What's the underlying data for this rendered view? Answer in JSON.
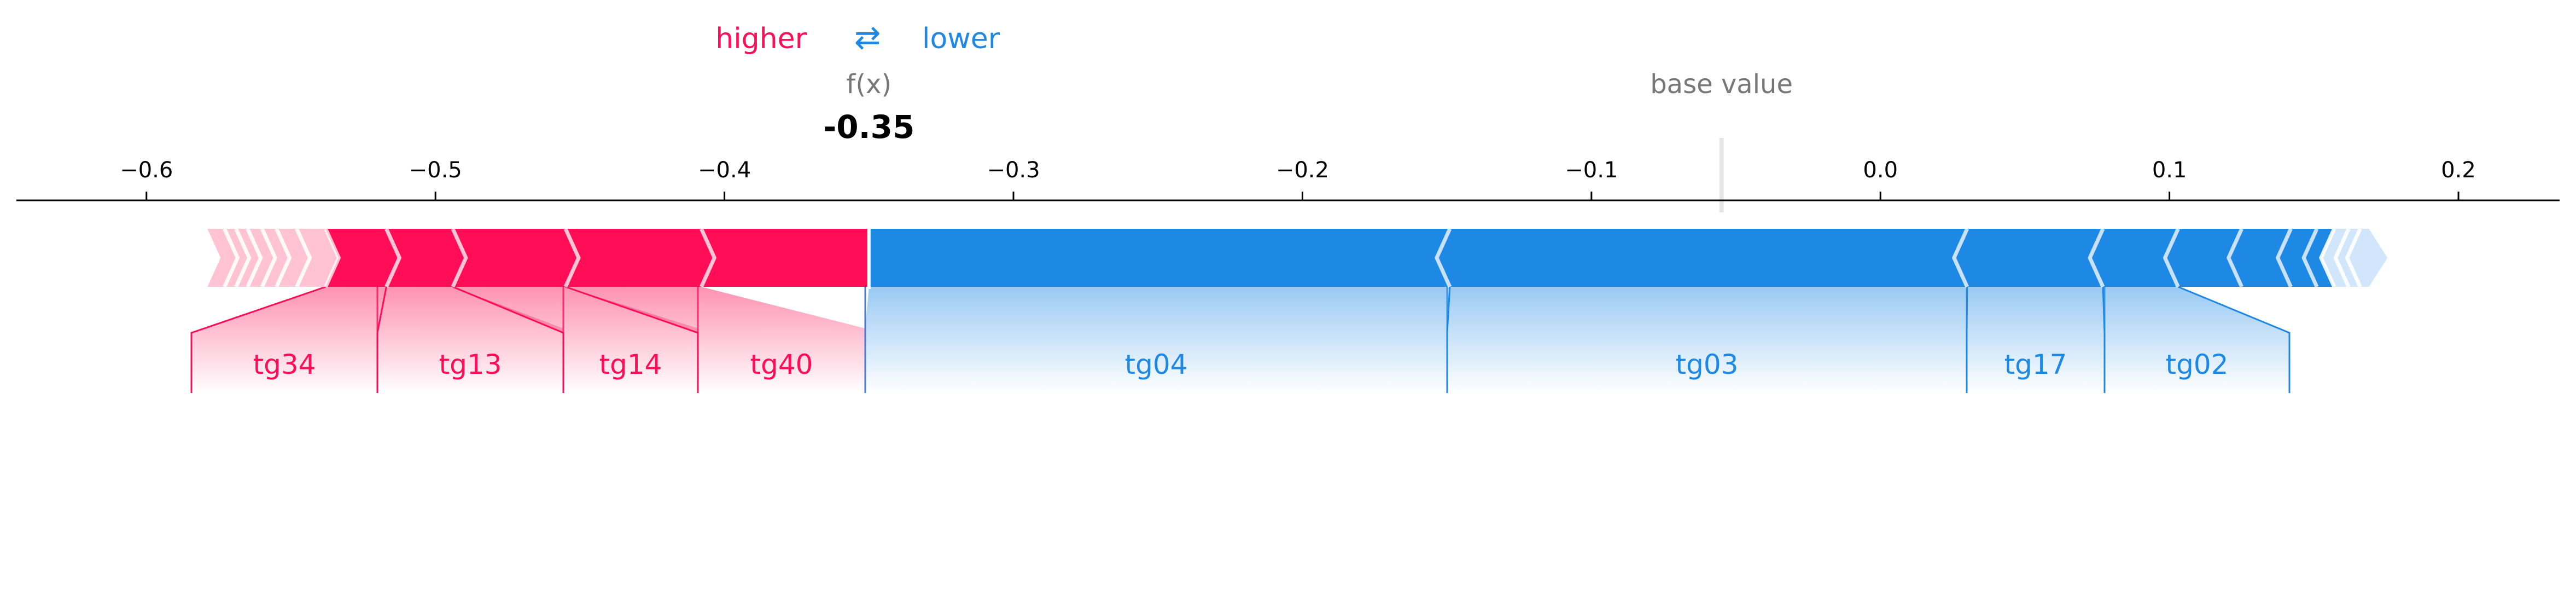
{
  "chart_data": {
    "type": "force",
    "legend": {
      "higher": "higher",
      "arrows": "⇄",
      "lower": "lower"
    },
    "output_label": "f(x)",
    "output_value": -0.35,
    "output_text": "-0.35",
    "base_label": "base value",
    "base_value": -0.055,
    "xlim": [
      -0.645,
      0.235
    ],
    "ticks": [
      {
        "value": -0.6,
        "label": "−0.6"
      },
      {
        "value": -0.5,
        "label": "−0.5"
      },
      {
        "value": -0.4,
        "label": "−0.4"
      },
      {
        "value": -0.3,
        "label": "−0.3"
      },
      {
        "value": -0.2,
        "label": "−0.2"
      },
      {
        "value": -0.1,
        "label": "−0.1"
      },
      {
        "value": 0.0,
        "label": "0.0"
      },
      {
        "value": 0.1,
        "label": "0.1"
      },
      {
        "value": 0.2,
        "label": "0.2"
      }
    ],
    "positive_bounds": [
      -0.577,
      -0.573,
      -0.569,
      -0.565,
      -0.56,
      -0.555,
      -0.548,
      -0.538,
      -0.517,
      -0.494,
      -0.455,
      -0.408,
      -0.35
    ],
    "negative_bounds": [
      -0.35,
      -0.149,
      0.03,
      0.077,
      0.103,
      0.125,
      0.142,
      0.151,
      0.157,
      0.162,
      0.166,
      0.169
    ],
    "positive_features": [
      {
        "name": "tg34",
        "from": -0.538,
        "to": -0.517
      },
      {
        "name": "tg13",
        "from": -0.517,
        "to": -0.494
      },
      {
        "name": "tg14",
        "from": -0.494,
        "to": -0.455
      },
      {
        "name": "tg40",
        "from": -0.455,
        "to": -0.408
      }
    ],
    "negative_features": [
      {
        "name": "tg04",
        "from": -0.35,
        "to": -0.149
      },
      {
        "name": "tg03",
        "from": -0.149,
        "to": 0.03
      },
      {
        "name": "tg17",
        "from": 0.03,
        "to": 0.077
      },
      {
        "name": "tg02",
        "from": 0.077,
        "to": 0.103
      }
    ],
    "colors": {
      "positive": "#ff0d57",
      "positive_light": "#ffc3d5",
      "negative": "#1e88e5",
      "negative_light": "#d1e6fa",
      "output_label": "#777777",
      "base_label": "#777777"
    }
  }
}
